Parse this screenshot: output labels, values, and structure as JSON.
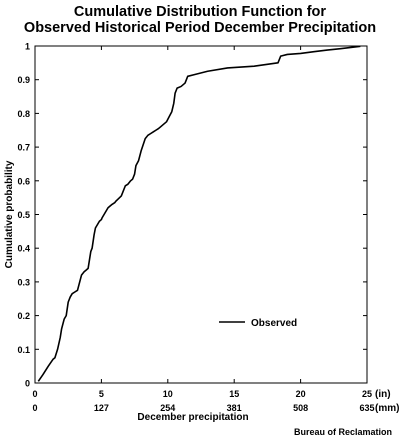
{
  "chart_data": {
    "type": "line",
    "title_line1": "Cumulative Distribution Function for",
    "title_line2": "Observed Historical Period December Precipitation",
    "ylabel": "Cumulative probability",
    "xlabel": "December precipitation",
    "xlim": [
      0,
      25
    ],
    "ylim": [
      0,
      1
    ],
    "x_ticks_in": [
      0,
      5,
      10,
      15,
      20,
      25
    ],
    "x_tick_labels_in": [
      "0",
      "5",
      "10",
      "15",
      "20",
      "25"
    ],
    "x_tick_labels_mm": [
      "0",
      "127",
      "254",
      "381",
      "508",
      "635"
    ],
    "x_unit_in": "(in)",
    "x_unit_mm": "(mm)",
    "y_ticks": [
      0,
      0.1,
      0.2,
      0.3,
      0.4,
      0.5,
      0.6,
      0.7,
      0.8,
      0.9,
      1
    ],
    "y_tick_labels": [
      "0",
      "0.1",
      "0.2",
      "0.3",
      "0.4",
      "0.5",
      "0.6",
      "0.7",
      "0.8",
      "0.9",
      "1"
    ],
    "legend_position": "lower-right",
    "series": [
      {
        "name": "Observed",
        "color": "#000000",
        "x": [
          0.25,
          0.6,
          1.0,
          1.35,
          1.5,
          1.7,
          1.9,
          2.0,
          2.2,
          2.35,
          2.5,
          2.65,
          2.8,
          3.0,
          3.2,
          3.5,
          3.7,
          3.85,
          4.0,
          4.2,
          4.3,
          4.45,
          4.55,
          4.7,
          4.85,
          5.0,
          5.05,
          5.2,
          5.5,
          5.8,
          6.0,
          6.1,
          6.5,
          6.8,
          7.0,
          7.2,
          7.35,
          7.5,
          7.6,
          7.8,
          8.0,
          8.3,
          8.5,
          8.7,
          8.9,
          9.1,
          9.3,
          9.6,
          9.9,
          10.1,
          10.3,
          10.45,
          10.55,
          10.7,
          11.0,
          11.3,
          11.5,
          12.0,
          13.0,
          14.5,
          16.5,
          18.3,
          18.5,
          19.0,
          20.0,
          21.0,
          22.0,
          23.0,
          24.5
        ],
        "y": [
          0.005,
          0.025,
          0.05,
          0.07,
          0.075,
          0.1,
          0.135,
          0.16,
          0.19,
          0.2,
          0.24,
          0.255,
          0.265,
          0.27,
          0.275,
          0.32,
          0.33,
          0.335,
          0.34,
          0.39,
          0.4,
          0.44,
          0.46,
          0.47,
          0.48,
          0.485,
          0.49,
          0.5,
          0.52,
          0.53,
          0.535,
          0.54,
          0.555,
          0.585,
          0.59,
          0.6,
          0.605,
          0.62,
          0.645,
          0.66,
          0.69,
          0.725,
          0.735,
          0.74,
          0.745,
          0.75,
          0.755,
          0.765,
          0.775,
          0.79,
          0.805,
          0.83,
          0.86,
          0.875,
          0.88,
          0.89,
          0.91,
          0.915,
          0.925,
          0.935,
          0.94,
          0.95,
          0.97,
          0.975,
          0.978,
          0.983,
          0.988,
          0.992,
          0.999
        ]
      }
    ]
  },
  "credit": "Bureau of Reclamation"
}
